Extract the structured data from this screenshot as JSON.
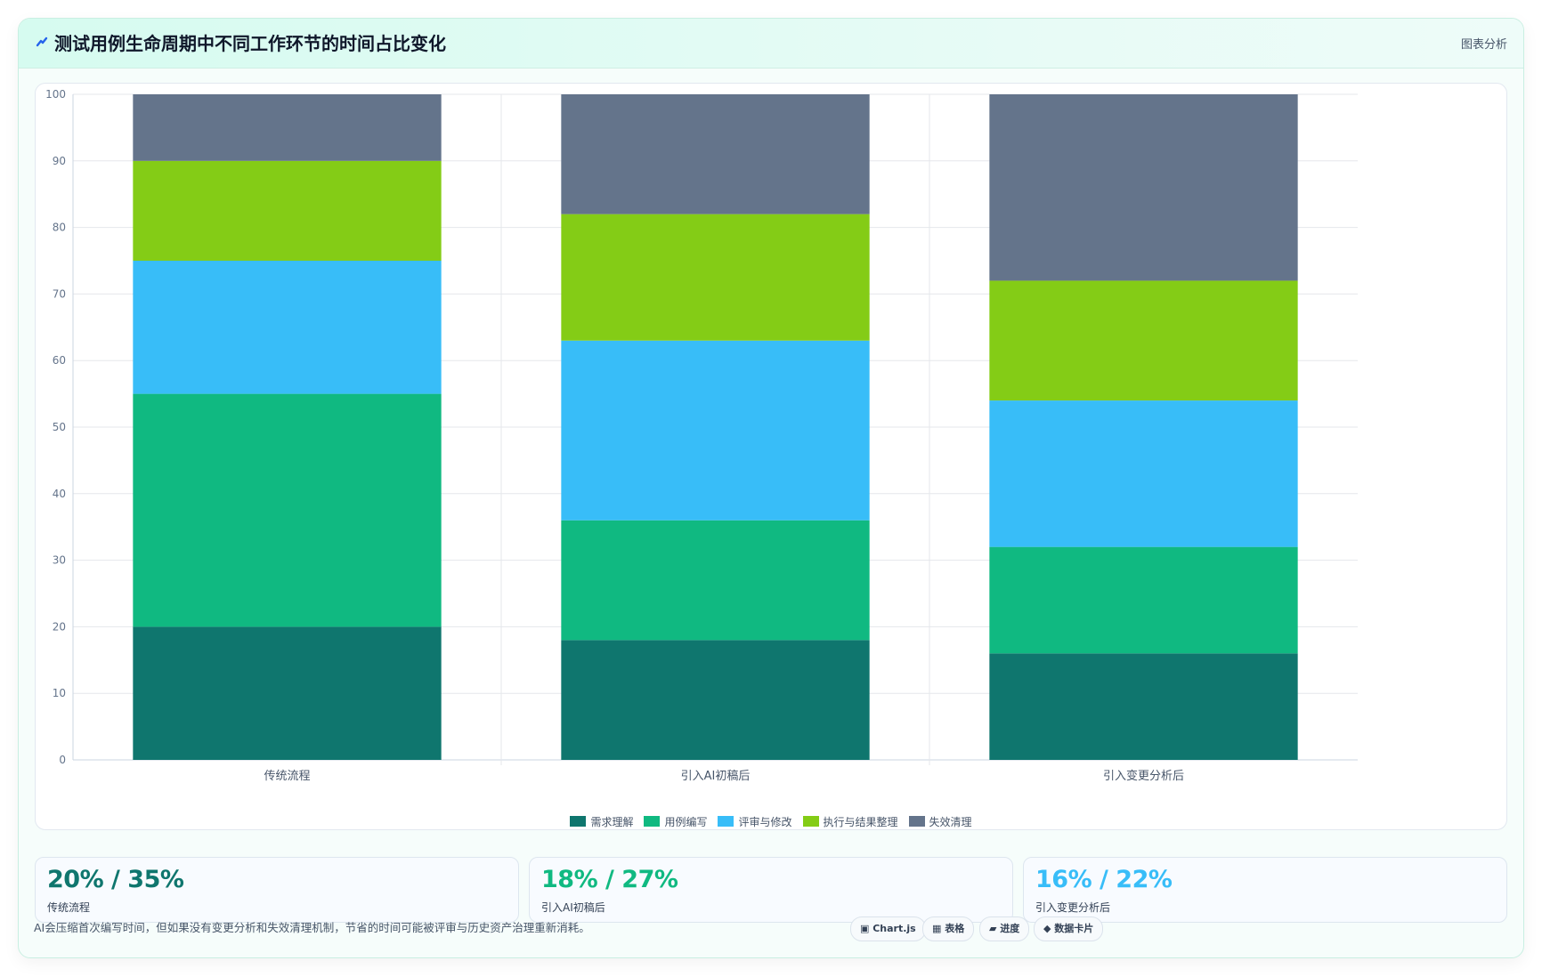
{
  "header": {
    "title": "测试用例生命周期中不同工作环节的时间占比变化",
    "tag": "图表分析"
  },
  "chart_data": {
    "type": "bar",
    "stacked": true,
    "categories": [
      "传统流程",
      "引入AI初稿后",
      "引入变更分析后"
    ],
    "series": [
      {
        "name": "需求理解",
        "color": "#0f766e",
        "values": [
          20,
          18,
          16
        ]
      },
      {
        "name": "用例编写",
        "color": "#10b981",
        "values": [
          35,
          18,
          16
        ]
      },
      {
        "name": "评审与修改",
        "color": "#38bdf8",
        "values": [
          20,
          27,
          22
        ]
      },
      {
        "name": "执行与结果整理",
        "color": "#84cc16",
        "values": [
          15,
          19,
          18
        ]
      },
      {
        "name": "失效清理",
        "color": "#64748b",
        "values": [
          10,
          18,
          28
        ]
      }
    ],
    "ylim": [
      0,
      100
    ],
    "yticks": [
      0,
      10,
      20,
      30,
      40,
      50,
      60,
      70,
      80,
      90,
      100
    ],
    "grid": true,
    "legend": "bottom"
  },
  "stats": [
    {
      "value": "20% / 35%",
      "label": "传统流程",
      "color": "#0f766e"
    },
    {
      "value": "18% / 27%",
      "label": "引入AI初稿后",
      "color": "#10b981"
    },
    {
      "value": "16% / 22%",
      "label": "引入变更分析后",
      "color": "#38bdf8"
    }
  ],
  "note": "AI会压缩首次编写时间，但如果没有变更分析和失效清理机制，节省的时间可能被评审与历史资产治理重新消耗。",
  "tags": [
    "▣ Chart.js",
    "▦ 表格",
    "▰ 进度",
    "◆ 数据卡片"
  ]
}
